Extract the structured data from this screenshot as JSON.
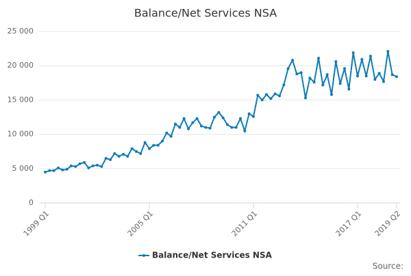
{
  "chart_data": {
    "type": "line",
    "title": "Balance/Net Services NSA",
    "categories": [
      "1999 Q1",
      null,
      null,
      null,
      null,
      null,
      null,
      null,
      null,
      null,
      null,
      null,
      null,
      null,
      null,
      null,
      null,
      null,
      null,
      null,
      null,
      null,
      null,
      null,
      "2005 Q1",
      null,
      null,
      null,
      null,
      null,
      null,
      null,
      null,
      null,
      null,
      null,
      null,
      null,
      null,
      null,
      null,
      null,
      null,
      null,
      null,
      null,
      null,
      null,
      "2011 Q1",
      null,
      null,
      null,
      null,
      null,
      null,
      null,
      null,
      null,
      null,
      null,
      null,
      null,
      null,
      null,
      null,
      null,
      null,
      null,
      null,
      null,
      null,
      null,
      "2017 Q1",
      null,
      null,
      null,
      null,
      null,
      null,
      null,
      null,
      "2019 Q2"
    ],
    "series": [
      {
        "name": "Balance/Net Services NSA",
        "color": "#0e7bb6",
        "values": [
          4500,
          4700,
          4700,
          5100,
          4800,
          4900,
          5400,
          5300,
          5700,
          5900,
          5100,
          5400,
          5500,
          5300,
          6500,
          6300,
          7200,
          6800,
          7100,
          6800,
          7900,
          7500,
          7200,
          8800,
          7900,
          8400,
          8400,
          9000,
          10200,
          9700,
          11500,
          11000,
          12300,
          10800,
          11700,
          12300,
          11200,
          11000,
          10900,
          12500,
          13200,
          12400,
          11400,
          11000,
          11000,
          12300,
          10500,
          13000,
          12600,
          15700,
          15000,
          15800,
          15200,
          15900,
          15600,
          17200,
          19600,
          20800,
          18800,
          19000,
          15300,
          18200,
          17600,
          21100,
          17200,
          18700,
          15800,
          20600,
          17400,
          19600,
          16600,
          21900,
          18500,
          20900,
          18500,
          21400,
          18000,
          18900,
          17700,
          22100,
          18700,
          18400
        ]
      }
    ],
    "ylim": [
      0,
      25000
    ],
    "yticks": [
      0,
      {
        "value": 5000,
        "label": "5 000"
      },
      {
        "value": 10000,
        "label": "10 000"
      },
      {
        "value": 15000,
        "label": "15 000"
      },
      {
        "value": 20000,
        "label": "20 000"
      },
      {
        "value": 25000,
        "label": "25 000"
      }
    ],
    "grid": true,
    "source": "Source:"
  }
}
